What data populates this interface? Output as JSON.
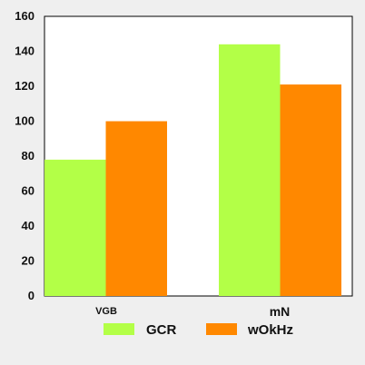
{
  "chart_data": {
    "type": "bar",
    "title": "",
    "xlabel": "",
    "ylabel": "",
    "categories": [
      "VGB",
      "mN"
    ],
    "series": [
      {
        "name": "GCR",
        "values": [
          78,
          144
        ],
        "color": "#b3ff47"
      },
      {
        "name": "wOkHz",
        "values": [
          100,
          121
        ],
        "color": "#ff8800"
      }
    ],
    "ylim": [
      0,
      160
    ],
    "yticks": [
      0,
      20,
      40,
      60,
      80,
      100,
      120,
      140,
      160
    ],
    "grid": false,
    "legend": "bottom",
    "background": "#efefef",
    "plot_background": "#ffffff"
  }
}
